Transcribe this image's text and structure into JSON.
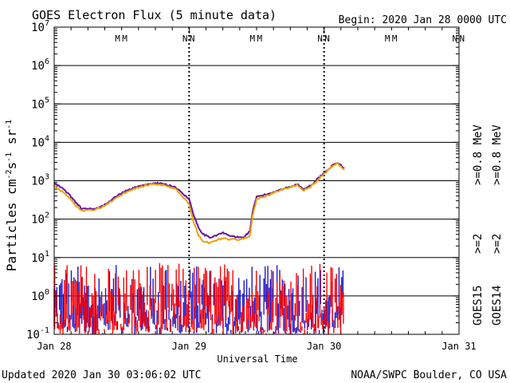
{
  "header": {
    "title": "GOES Electron Flux (5 minute data)",
    "begin": "Begin: 2020 Jan 28 0000 UTC"
  },
  "footer": {
    "updated": "Updated 2020 Jan 30 03:06:02 UTC",
    "credit": "NOAA/SWPC Boulder, CO USA"
  },
  "colors": {
    "purple": "#6a0dad",
    "orange": "#e8a400",
    "blue": "#1818d0",
    "red": "#ff0000",
    "grid": "#000000"
  },
  "chart_data": {
    "type": "line",
    "title": "GOES Electron Flux (5 minute data)",
    "xlabel": "Universal Time",
    "ylabel_parts": {
      "base": "Particles cm",
      "e1": "-2",
      "s": "s",
      "e2": "-1",
      "sr": "sr",
      "e3": "-1"
    },
    "x_unit": "days since 2020 Jan 28 00:00 UTC",
    "xlim": [
      0,
      3
    ],
    "y_scale": "log",
    "ylim_exp": [
      -1,
      7
    ],
    "y_ticks": [
      {
        "base": "10",
        "exp": "-1"
      },
      {
        "base": "10",
        "exp": "0"
      },
      {
        "base": "10",
        "exp": "1"
      },
      {
        "base": "10",
        "exp": "2"
      },
      {
        "base": "10",
        "exp": "3"
      },
      {
        "base": "10",
        "exp": "4"
      },
      {
        "base": "10",
        "exp": "5"
      },
      {
        "base": "10",
        "exp": "6"
      },
      {
        "base": "10",
        "exp": "7"
      }
    ],
    "x_ticks": [
      "Jan 28",
      "Jan 29",
      "Jan 30",
      "Jan 31"
    ],
    "threshold": 1000,
    "legend": [
      {
        "label": ">=0.8 MeV",
        "color": "#6a0dad"
      },
      {
        "label": ">=2",
        "color": "#1818d0"
      },
      {
        "label": "GOES15",
        "color": "#000000"
      },
      {
        "label": ">=0.8 MeV",
        "color": "#e8a400"
      },
      {
        "label": ">=2",
        "color": "#ff0000"
      },
      {
        "label": "GOES14",
        "color": "#000000"
      }
    ],
    "markers": [
      {
        "day": 0,
        "m": "M",
        "n": "N"
      },
      {
        "day": 1,
        "m": "M",
        "n": "N"
      },
      {
        "day": 2,
        "m": "M",
        "n": "N"
      }
    ],
    "series": [
      {
        "name": "GOES15 >=0.8 MeV",
        "color": "#6a0dad",
        "x": [
          0,
          0.05,
          0.1,
          0.15,
          0.2,
          0.3,
          0.35,
          0.4,
          0.45,
          0.5,
          0.55,
          0.6,
          0.65,
          0.7,
          0.75,
          0.8,
          0.85,
          0.9,
          0.95,
          1.0,
          1.03,
          1.07,
          1.1,
          1.15,
          1.2,
          1.25,
          1.3,
          1.35,
          1.4,
          1.45,
          1.47,
          1.5,
          1.55,
          1.6,
          1.65,
          1.7,
          1.75,
          1.8,
          1.85,
          1.9,
          1.95,
          2.0,
          2.05,
          2.1,
          2.15
        ],
        "y": [
          850,
          680,
          480,
          300,
          190,
          185,
          210,
          270,
          370,
          480,
          570,
          670,
          740,
          820,
          860,
          840,
          760,
          680,
          470,
          340,
          140,
          60,
          42,
          33,
          38,
          44,
          37,
          34,
          33,
          48,
          150,
          380,
          420,
          470,
          550,
          620,
          700,
          820,
          600,
          750,
          1100,
          1600,
          2300,
          3000,
          2100
        ]
      },
      {
        "name": "GOES14 >=0.8 MeV",
        "color": "#e8a400",
        "x": [
          0,
          0.05,
          0.1,
          0.15,
          0.2,
          0.3,
          0.35,
          0.4,
          0.45,
          0.5,
          0.55,
          0.6,
          0.65,
          0.7,
          0.75,
          0.8,
          0.85,
          0.9,
          0.95,
          1.0,
          1.03,
          1.07,
          1.1,
          1.15,
          1.2,
          1.25,
          1.3,
          1.35,
          1.4,
          1.45,
          1.47,
          1.5,
          1.55,
          1.6,
          1.65,
          1.7,
          1.75,
          1.8,
          1.85,
          1.9,
          1.95,
          2.0,
          2.05,
          2.1,
          2.15
        ],
        "y": [
          720,
          560,
          400,
          250,
          165,
          175,
          200,
          250,
          340,
          440,
          540,
          630,
          700,
          780,
          800,
          780,
          700,
          600,
          380,
          250,
          90,
          38,
          27,
          24,
          28,
          32,
          30,
          29,
          30,
          37,
          120,
          330,
          380,
          440,
          520,
          600,
          680,
          780,
          560,
          700,
          1000,
          1500,
          2200,
          2800,
          1900
        ]
      }
    ],
    "bar_series": [
      {
        "name": "GOES15 >=2",
        "color": "#1818d0",
        "range": [
          0.1,
          6.5
        ],
        "density": 220
      },
      {
        "name": "GOES14 >=2",
        "color": "#ff0000",
        "range": [
          0.1,
          7.5
        ],
        "density": 210
      }
    ],
    "grid": true
  }
}
